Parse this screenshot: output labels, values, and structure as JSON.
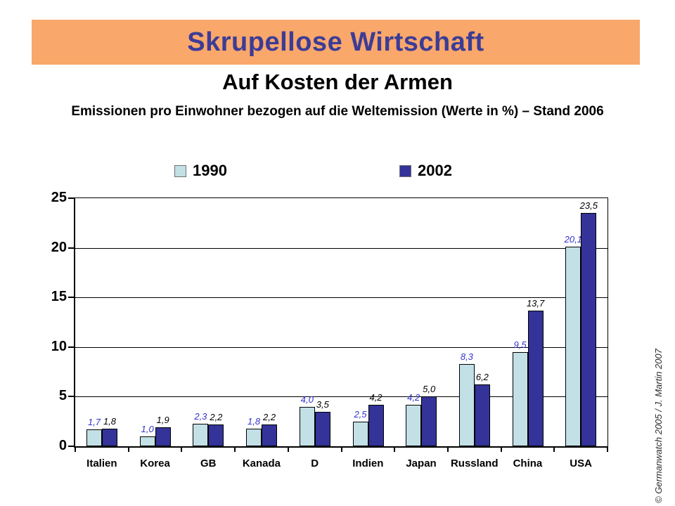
{
  "header": {
    "banner_title": "Skrupellose Wirtschaft",
    "subtitle": "Auf Kosten der Armen",
    "description": "Emissionen pro Einwohner bezogen auf die Weltemission (Werte in %) – Stand 2006"
  },
  "footer": {
    "copyright": "© Germanwatch 2005 / J. Martin 2007"
  },
  "colors": {
    "banner_background": "#F9A76B",
    "banner_text": "#3C3C96",
    "series_1990": "#C2E0E6",
    "series_2002": "#333399",
    "label_1990": "#3333CC",
    "label_2002": "#000000"
  },
  "chart_data": {
    "type": "bar",
    "title": "Emissionen pro Einwohner bezogen auf die Weltemission (Werte in %) – Stand 2006",
    "xlabel": "",
    "ylabel": "",
    "ylim": [
      0,
      25
    ],
    "ytick_step": 5,
    "grid": true,
    "legend_position": "top",
    "categories": [
      "Italien",
      "Korea",
      "GB",
      "Kanada",
      "D",
      "Indien",
      "Japan",
      "Russland",
      "China",
      "USA"
    ],
    "series": [
      {
        "name": "1990",
        "color": "#C2E0E6",
        "label_color": "#3333CC",
        "values": [
          1.7,
          1.0,
          2.3,
          1.8,
          4.0,
          2.5,
          4.2,
          8.3,
          9.5,
          20.1
        ],
        "labels": [
          "1,7",
          "1,0",
          "2,3",
          "1,8",
          "4,0",
          "2,5",
          "4,2",
          "8,3",
          "9,5",
          "20,1"
        ]
      },
      {
        "name": "2002",
        "color": "#333399",
        "label_color": "#000000",
        "values": [
          1.8,
          1.9,
          2.2,
          2.2,
          3.5,
          4.2,
          5.0,
          6.2,
          13.7,
          23.5
        ],
        "labels": [
          "1,8",
          "1,9",
          "2,2",
          "2,2",
          "3,5",
          "4,2",
          "5,0",
          "6,2",
          "13,7",
          "23,5"
        ]
      }
    ]
  }
}
